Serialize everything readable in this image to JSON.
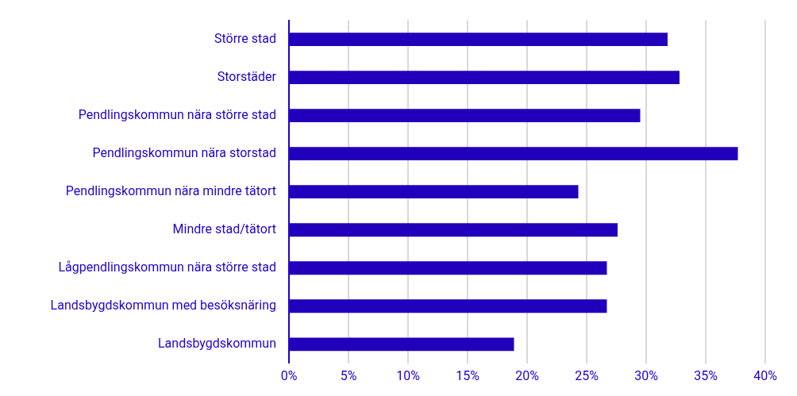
{
  "chart_data": {
    "type": "bar",
    "orientation": "horizontal",
    "categories": [
      "Större stad",
      "Storstäder",
      "Pendlingskommun nära större stad",
      "Pendlingskommun nära storstad",
      "Pendlingskommun nära mindre tätort",
      "Mindre stad/tätort",
      "Lågpendlingskommun nära större stad",
      "Landsbygdskommun med besöksnäring",
      "Landsbygdskommun"
    ],
    "values": [
      31.8,
      32.8,
      29.5,
      37.7,
      24.3,
      27.6,
      26.7,
      26.7,
      18.9
    ],
    "color": "#2200bb",
    "xlim": [
      0,
      40
    ],
    "xticks": [
      {
        "value": 0,
        "label": "0%"
      },
      {
        "value": 5,
        "label": "5%"
      },
      {
        "value": 10,
        "label": "10%"
      },
      {
        "value": 15,
        "label": "15%"
      },
      {
        "value": 20,
        "label": "20%"
      },
      {
        "value": 25,
        "label": "25%"
      },
      {
        "value": 30,
        "label": "30%"
      },
      {
        "value": 35,
        "label": "35%"
      },
      {
        "value": 40,
        "label": "40%"
      }
    ],
    "grid": "x",
    "legend": false
  }
}
